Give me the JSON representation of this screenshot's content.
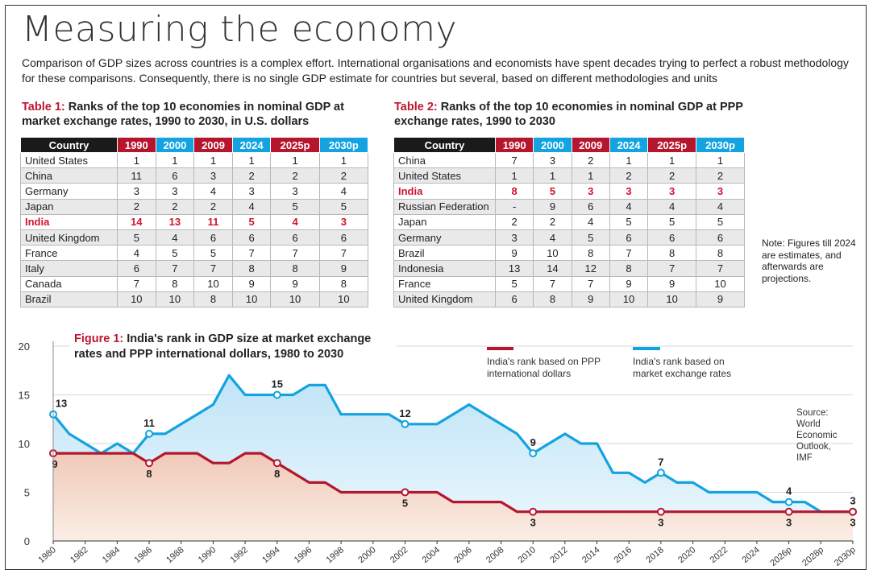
{
  "title": "Measuring the economy",
  "intro": "Comparison of GDP sizes across countries is a complex effort. International organisations and economists have spent decades trying to perfect a robust methodology for these comparisons. Consequently, there is no single GDP estimate for countries but several, based on different methodologies and units",
  "table1": {
    "label": "Table 1:",
    "caption": "Ranks of the top 10 economies in nominal GDP at market exchange rates, 1990 to 2030, in U.S. dollars",
    "headers": [
      "Country",
      "1990",
      "2000",
      "2009",
      "2024",
      "2025p",
      "2030p"
    ],
    "rows": [
      [
        "United States",
        "1",
        "1",
        "1",
        "1",
        "1",
        "1"
      ],
      [
        "China",
        "11",
        "6",
        "3",
        "2",
        "2",
        "2"
      ],
      [
        "Germany",
        "3",
        "3",
        "4",
        "3",
        "3",
        "4"
      ],
      [
        "Japan",
        "2",
        "2",
        "2",
        "4",
        "5",
        "5"
      ],
      [
        "India",
        "14",
        "13",
        "11",
        "5",
        "4",
        "3"
      ],
      [
        "United Kingdom",
        "5",
        "4",
        "6",
        "6",
        "6",
        "6"
      ],
      [
        "France",
        "4",
        "5",
        "5",
        "7",
        "7",
        "7"
      ],
      [
        "Italy",
        "6",
        "7",
        "7",
        "8",
        "8",
        "9"
      ],
      [
        "Canada",
        "7",
        "8",
        "10",
        "9",
        "9",
        "8"
      ],
      [
        "Brazil",
        "10",
        "10",
        "8",
        "10",
        "10",
        "10"
      ]
    ],
    "highlight_row": 4
  },
  "table2": {
    "label": "Table 2:",
    "caption": "Ranks of the top 10 economies in nominal GDP at PPP exchange rates, 1990 to 2030",
    "headers": [
      "Country",
      "1990",
      "2000",
      "2009",
      "2024",
      "2025p",
      "2030p"
    ],
    "rows": [
      [
        "China",
        "7",
        "3",
        "2",
        "1",
        "1",
        "1"
      ],
      [
        "United States",
        "1",
        "1",
        "1",
        "2",
        "2",
        "2"
      ],
      [
        "India",
        "8",
        "5",
        "3",
        "3",
        "3",
        "3"
      ],
      [
        "Russian Federation",
        "-",
        "9",
        "6",
        "4",
        "4",
        "4"
      ],
      [
        "Japan",
        "2",
        "2",
        "4",
        "5",
        "5",
        "5"
      ],
      [
        "Germany",
        "3",
        "4",
        "5",
        "6",
        "6",
        "6"
      ],
      [
        "Brazil",
        "9",
        "10",
        "8",
        "7",
        "8",
        "8"
      ],
      [
        "Indonesia",
        "13",
        "14",
        "12",
        "8",
        "7",
        "7"
      ],
      [
        "France",
        "5",
        "7",
        "7",
        "9",
        "9",
        "10"
      ],
      [
        "United Kingdom",
        "6",
        "8",
        "9",
        "10",
        "10",
        "9"
      ]
    ],
    "highlight_row": 2
  },
  "note": "Note: Figures till 2024 are estimates, and afterwards are projections.",
  "colors": {
    "red": "#b5162e",
    "blue": "#13a3e0",
    "black": "#1a1a1a",
    "highlight": "#d0142f"
  },
  "chart_data": {
    "type": "line",
    "title_label": "Figure 1:",
    "title": "India's rank in GDP size at market exchange rates and PPP international dollars, 1980 to 2030",
    "ylim": [
      0,
      20
    ],
    "yticks": [
      0,
      5,
      10,
      15,
      20
    ],
    "x_tick_labels": [
      "1980",
      "1982",
      "1984",
      "1986",
      "1988",
      "1990",
      "1992",
      "1994",
      "1996",
      "1998",
      "2000",
      "2002",
      "2004",
      "2006",
      "2008",
      "2010",
      "2012",
      "2014",
      "2016",
      "2018",
      "2020",
      "2022",
      "2024",
      "2026p",
      "2028p",
      "2030p"
    ],
    "x_tick_years": [
      1980,
      1982,
      1984,
      1986,
      1988,
      1990,
      1992,
      1994,
      1996,
      1998,
      2000,
      2002,
      2004,
      2006,
      2008,
      2010,
      2012,
      2014,
      2016,
      2018,
      2020,
      2022,
      2024,
      2026,
      2028,
      2030
    ],
    "legend_ppp": "India's rank based on PPP international dollars",
    "legend_mer": "India's rank based on market exchange rates",
    "source": "Source: World Economic Outlook, IMF",
    "series": [
      {
        "name": "India's rank based on market exchange rates",
        "color": "#13a3e0",
        "x": [
          1980,
          1981,
          1982,
          1983,
          1984,
          1985,
          1986,
          1987,
          1988,
          1989,
          1990,
          1991,
          1992,
          1993,
          1994,
          1995,
          1996,
          1997,
          1998,
          1999,
          2000,
          2001,
          2002,
          2003,
          2004,
          2005,
          2006,
          2007,
          2008,
          2009,
          2010,
          2011,
          2012,
          2013,
          2014,
          2015,
          2016,
          2017,
          2018,
          2019,
          2020,
          2021,
          2022,
          2023,
          2024,
          2025,
          2026,
          2027,
          2028,
          2029,
          2030
        ],
        "values": [
          13,
          11,
          10,
          9,
          10,
          9,
          11,
          11,
          12,
          13,
          14,
          17,
          15,
          15,
          15,
          15,
          16,
          16,
          13,
          13,
          13,
          13,
          12,
          12,
          12,
          13,
          14,
          13,
          12,
          11,
          9,
          10,
          11,
          10,
          10,
          7,
          7,
          6,
          7,
          6,
          6,
          5,
          5,
          5,
          5,
          4,
          4,
          4,
          3,
          3,
          3
        ]
      },
      {
        "name": "India's rank based on PPP international dollars",
        "color": "#b5162e",
        "x": [
          1980,
          1981,
          1982,
          1983,
          1984,
          1985,
          1986,
          1987,
          1988,
          1989,
          1990,
          1991,
          1992,
          1993,
          1994,
          1995,
          1996,
          1997,
          1998,
          1999,
          2000,
          2001,
          2002,
          2003,
          2004,
          2005,
          2006,
          2007,
          2008,
          2009,
          2010,
          2011,
          2012,
          2013,
          2014,
          2015,
          2016,
          2017,
          2018,
          2019,
          2020,
          2021,
          2022,
          2023,
          2024,
          2025,
          2026,
          2027,
          2028,
          2029,
          2030
        ],
        "values": [
          9,
          9,
          9,
          9,
          9,
          9,
          8,
          9,
          9,
          9,
          8,
          8,
          9,
          9,
          8,
          7,
          6,
          6,
          5,
          5,
          5,
          5,
          5,
          5,
          5,
          4,
          4,
          4,
          4,
          3,
          3,
          3,
          3,
          3,
          3,
          3,
          3,
          3,
          3,
          3,
          3,
          3,
          3,
          3,
          3,
          3,
          3,
          3,
          3,
          3,
          3
        ]
      }
    ],
    "labels_mer": [
      {
        "year": 1980,
        "text": "13"
      },
      {
        "year": 1986,
        "text": "11"
      },
      {
        "year": 1994,
        "text": "15"
      },
      {
        "year": 2002,
        "text": "12"
      },
      {
        "year": 2010,
        "text": "9"
      },
      {
        "year": 2018,
        "text": "7"
      },
      {
        "year": 2026,
        "text": "4"
      },
      {
        "year": 2030,
        "text": "3"
      }
    ],
    "labels_ppp": [
      {
        "year": 1980,
        "text": "9"
      },
      {
        "year": 1986,
        "text": "8"
      },
      {
        "year": 1994,
        "text": "8"
      },
      {
        "year": 2002,
        "text": "5"
      },
      {
        "year": 2010,
        "text": "3"
      },
      {
        "year": 2018,
        "text": "3"
      },
      {
        "year": 2026,
        "text": "3"
      },
      {
        "year": 2030,
        "text": "3"
      }
    ]
  }
}
